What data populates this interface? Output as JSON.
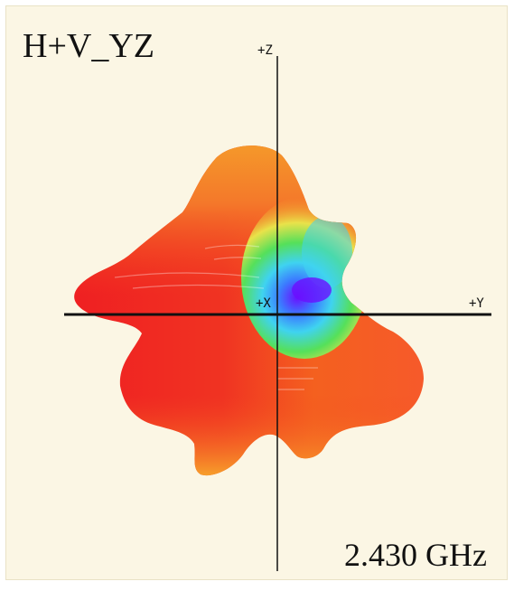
{
  "plot": {
    "title": "H+V_YZ",
    "frequency": "2.430 GHz",
    "axes": {
      "z_label": "+Z",
      "x_label": "+X",
      "y_label": "+Y"
    },
    "colors": {
      "background": "#fbf6e4",
      "max": "#ef1e22",
      "high": "#f4581f",
      "mid_high": "#f7a92a",
      "mid": "#e8e64a",
      "low_mid": "#58e25a",
      "low": "#3fc6f0",
      "min": "#5b1fff"
    }
  }
}
